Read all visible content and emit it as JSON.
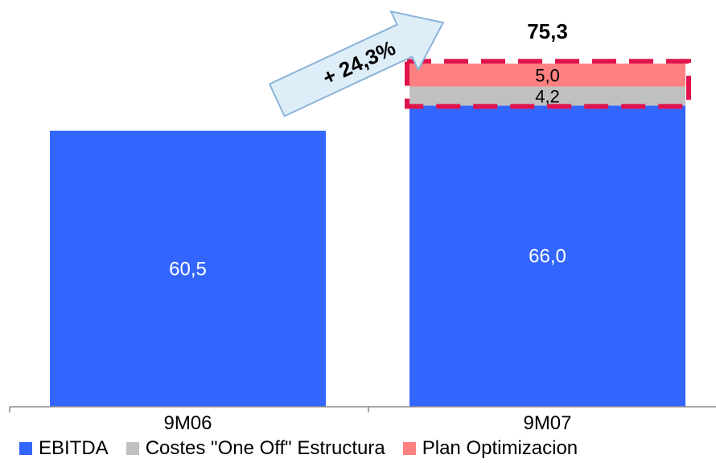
{
  "chart_data": {
    "type": "bar",
    "stacked": true,
    "categories": [
      "9M06",
      "9M07"
    ],
    "series": [
      {
        "name": "EBITDA",
        "values": [
          60.5,
          66.0
        ],
        "labels": [
          "60,5",
          "66,0"
        ],
        "color": "#3366FF"
      },
      {
        "name": "Costes \"One Off\" Estructura",
        "values": [
          0,
          4.2
        ],
        "labels": [
          "",
          "4,2"
        ],
        "color": "#C0C0C0"
      },
      {
        "name": "Plan Optimizacion",
        "values": [
          0,
          5.0
        ],
        "labels": [
          "",
          "5,0"
        ],
        "color": "#FF8080"
      }
    ],
    "totals": [
      "",
      "75,3"
    ],
    "annotation": "+ 24,3%",
    "legend_position": "bottom",
    "grid": false,
    "ylim": [
      0,
      82
    ]
  }
}
